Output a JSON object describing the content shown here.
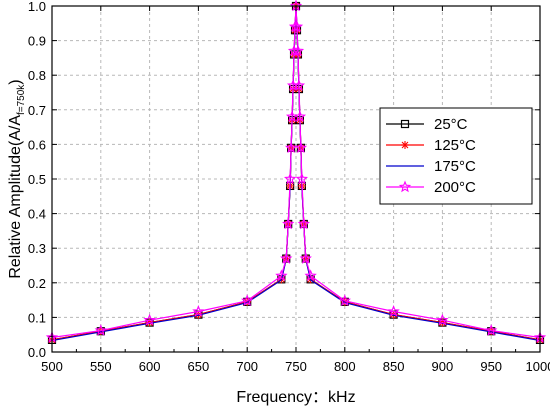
{
  "chart_data": {
    "type": "line",
    "title": "",
    "xlabel": "Frequency：kHz",
    "ylabel_main": "Relative Amplitude(A/A",
    "ylabel_sub": "f=750k",
    "ylabel_end": ")",
    "xlim": [
      500,
      1000
    ],
    "ylim": [
      0,
      1.0
    ],
    "xticks": [
      500,
      550,
      600,
      650,
      700,
      750,
      800,
      850,
      900,
      950,
      1000
    ],
    "yticks": [
      0.0,
      0.1,
      0.2,
      0.3,
      0.4,
      0.5,
      0.6,
      0.7,
      0.8,
      0.9,
      1.0
    ],
    "grid": true,
    "legend_position": "right",
    "x": [
      500,
      550,
      600,
      650,
      700,
      735,
      740,
      742,
      744,
      745,
      746,
      747,
      748,
      749,
      750,
      751,
      752,
      753,
      754,
      755,
      756,
      758,
      760,
      765,
      800,
      850,
      900,
      950,
      1000
    ],
    "series": [
      {
        "name": "25°C",
        "color": "#000000",
        "marker": "square",
        "values": [
          0.035,
          0.06,
          0.085,
          0.108,
          0.145,
          0.21,
          0.27,
          0.37,
          0.48,
          0.59,
          0.67,
          0.76,
          0.86,
          0.93,
          1.0,
          0.93,
          0.86,
          0.76,
          0.67,
          0.59,
          0.48,
          0.37,
          0.27,
          0.21,
          0.145,
          0.108,
          0.085,
          0.06,
          0.035
        ]
      },
      {
        "name": "125°C",
        "color": "#ff0000",
        "marker": "asterisk",
        "values": [
          0.035,
          0.06,
          0.085,
          0.108,
          0.145,
          0.21,
          0.27,
          0.37,
          0.48,
          0.59,
          0.67,
          0.76,
          0.86,
          0.93,
          1.0,
          0.93,
          0.86,
          0.76,
          0.67,
          0.59,
          0.48,
          0.37,
          0.27,
          0.21,
          0.145,
          0.108,
          0.085,
          0.06,
          0.035
        ]
      },
      {
        "name": "175°C",
        "color": "#0000cc",
        "marker": "none",
        "values": [
          0.033,
          0.058,
          0.083,
          0.106,
          0.143,
          0.208,
          0.268,
          0.368,
          0.478,
          0.588,
          0.668,
          0.758,
          0.858,
          0.928,
          1.0,
          0.928,
          0.858,
          0.758,
          0.668,
          0.588,
          0.478,
          0.368,
          0.268,
          0.208,
          0.143,
          0.106,
          0.083,
          0.058,
          0.033
        ]
      },
      {
        "name": "200°C",
        "color": "#ff00ff",
        "marker": "star",
        "values": [
          0.042,
          0.062,
          0.092,
          0.117,
          0.148,
          0.22,
          0.27,
          0.37,
          0.5,
          0.59,
          0.68,
          0.77,
          0.87,
          0.94,
          1.0,
          0.94,
          0.87,
          0.77,
          0.68,
          0.59,
          0.5,
          0.37,
          0.27,
          0.22,
          0.148,
          0.117,
          0.092,
          0.062,
          0.042
        ]
      }
    ]
  }
}
